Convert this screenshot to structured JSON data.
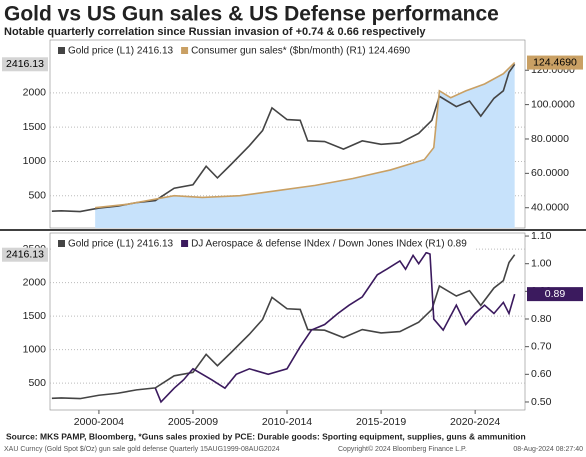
{
  "chart_data": [
    {
      "type": "line",
      "title": "Gold vs US Gun sales & US Defense performance",
      "subtitle": "Notable quarterly correlation since Russian invasion of +0.74 & 0.66 respectively",
      "xlim": [
        1999.9,
        2025.15
      ],
      "ylim": [
        30,
        2770
      ],
      "yticks": [
        500,
        1000,
        1500,
        2000
      ],
      "y2lim": [
        28.2,
        137.6
      ],
      "y2ticks": [
        {
          "value": 40,
          "label": "40.0000"
        },
        {
          "value": 60,
          "label": "60.0000"
        },
        {
          "value": 80,
          "label": "80.0000"
        },
        {
          "value": 100,
          "label": "100.0000"
        },
        {
          "value": 120,
          "label": "120.0000"
        }
      ],
      "grid": true,
      "series": [
        {
          "name": "Gold price (L1) 2416.13",
          "color": "#444444",
          "x": [
            2000.0,
            2000.5,
            2001.5,
            2002.5,
            2003.5,
            2004.5,
            2005.5,
            2006.5,
            2007.5,
            2008.2,
            2008.8,
            2009.5,
            2010.5,
            2011.2,
            2011.7,
            2012.5,
            2013.2,
            2013.6,
            2014.5,
            2015.5,
            2016.5,
            2017.5,
            2018.5,
            2019.5,
            2020.2,
            2020.6,
            2021.5,
            2022.2,
            2022.8,
            2023.5,
            2024.0,
            2024.3,
            2024.6
          ],
          "values": [
            275,
            280,
            270,
            320,
            350,
            400,
            430,
            610,
            660,
            930,
            760,
            950,
            1230,
            1450,
            1780,
            1610,
            1600,
            1300,
            1290,
            1180,
            1300,
            1250,
            1270,
            1410,
            1600,
            1950,
            1800,
            1880,
            1660,
            1920,
            2030,
            2300,
            2416.13
          ]
        },
        {
          "name": "Consumer gun sales* ($bn/month) (R1) 124.4690",
          "color": "#c9a064",
          "fill": "#c7e2fb",
          "axis": "y2",
          "x": [
            2002.3,
            2004.0,
            2005.5,
            2006.5,
            2008.0,
            2010.0,
            2012.0,
            2014.0,
            2016.0,
            2018.0,
            2019.8,
            2020.3,
            2020.6,
            2021.2,
            2022.0,
            2023.0,
            2024.0,
            2024.6
          ],
          "values": [
            40,
            42,
            45,
            47,
            46,
            47,
            50,
            53,
            57,
            62,
            68,
            75,
            108,
            104,
            108,
            112,
            118,
            124.469
          ],
          "value_labels": [
            null,
            null,
            null,
            null,
            null,
            null,
            null,
            null,
            null,
            null,
            null,
            null,
            null,
            null,
            null,
            null,
            null,
            "124.4690"
          ]
        }
      ]
    },
    {
      "type": "line",
      "xlim": [
        1999.9,
        2025.15
      ],
      "xticks": [
        {
          "value": 2002.5,
          "label": "2000-2004"
        },
        {
          "value": 2007.5,
          "label": "2005-2009"
        },
        {
          "value": 2012.5,
          "label": "2010-2014"
        },
        {
          "value": 2017.5,
          "label": "2015-2019"
        },
        {
          "value": 2022.5,
          "label": "2020-2024"
        }
      ],
      "ylim": [
        100,
        2740
      ],
      "yticks": [
        500,
        1000,
        1500,
        2000,
        2500
      ],
      "y2lim": [
        0.471,
        1.111
      ],
      "y2ticks": [
        {
          "value": 0.5,
          "label": "0.50"
        },
        {
          "value": 0.6,
          "label": "0.60"
        },
        {
          "value": 0.7,
          "label": "0.70"
        },
        {
          "value": 0.8,
          "label": "0.80"
        },
        {
          "value": 0.9,
          "label": "0.90"
        },
        {
          "value": 1.0,
          "label": "1.00"
        },
        {
          "value": 1.1,
          "label": "1.10"
        }
      ],
      "grid": true,
      "series": [
        {
          "name": "Gold price (L1) 2416.13",
          "color": "#444444",
          "x": [
            2000.0,
            2000.5,
            2001.5,
            2002.5,
            2003.5,
            2004.5,
            2005.5,
            2006.5,
            2007.5,
            2008.2,
            2008.8,
            2009.5,
            2010.5,
            2011.2,
            2011.7,
            2012.5,
            2013.2,
            2013.6,
            2014.5,
            2015.5,
            2016.5,
            2017.5,
            2018.5,
            2019.5,
            2020.2,
            2020.6,
            2021.5,
            2022.2,
            2022.8,
            2023.5,
            2024.0,
            2024.3,
            2024.6
          ],
          "values": [
            275,
            280,
            270,
            320,
            350,
            400,
            430,
            610,
            660,
            930,
            760,
            950,
            1230,
            1450,
            1780,
            1610,
            1600,
            1300,
            1290,
            1180,
            1300,
            1250,
            1270,
            1410,
            1600,
            1950,
            1800,
            1880,
            1660,
            1920,
            2030,
            2300,
            2416.13
          ]
        },
        {
          "name": "DJ Aerospace & defense INdex / Down Jones INdex (R1) 0.89",
          "color": "#3b1a5e",
          "axis": "y2",
          "x": [
            2005.5,
            2005.8,
            2006.5,
            2007.0,
            2007.5,
            2008.5,
            2009.2,
            2009.8,
            2010.5,
            2011.5,
            2012.5,
            2013.2,
            2013.8,
            2014.5,
            2015.2,
            2015.8,
            2016.5,
            2017.3,
            2017.8,
            2018.5,
            2018.8,
            2019.2,
            2019.5,
            2019.9,
            2020.1,
            2020.3,
            2020.8,
            2021.5,
            2022.0,
            2022.5,
            2023.0,
            2023.5,
            2024.0,
            2024.3,
            2024.6
          ],
          "values": [
            0.55,
            0.5,
            0.55,
            0.58,
            0.62,
            0.58,
            0.55,
            0.6,
            0.62,
            0.6,
            0.62,
            0.7,
            0.76,
            0.78,
            0.82,
            0.85,
            0.88,
            0.96,
            0.98,
            1.01,
            0.98,
            1.03,
            1.0,
            1.04,
            1.035,
            0.8,
            0.76,
            0.85,
            0.78,
            0.82,
            0.85,
            0.82,
            0.86,
            0.82,
            0.89
          ]
        }
      ]
    }
  ],
  "footer": {
    "source": "Source: MKS PAMP, Bloomberg, *Guns sales proxied by PCE: Durable goods: Sporting equipment, supplies, guns & ammunition",
    "info": "XAU Curncy (Gold Spot   $/Oz) gun sale gold defense  Quarterly 15AUG1999-08AUG2024",
    "copyright": "Copyright© 2024 Bloomberg Finance L.P.",
    "timestamp": "08-Aug-2024 08:27:40"
  }
}
